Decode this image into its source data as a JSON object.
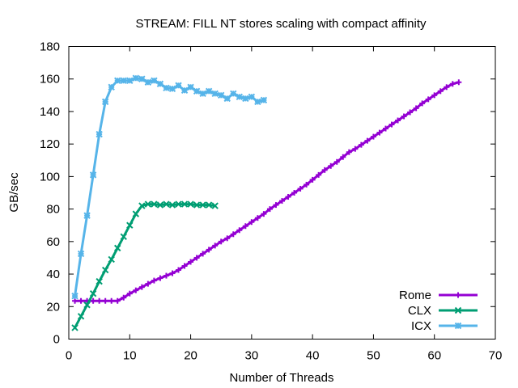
{
  "chart_data": {
    "type": "line",
    "title": "STREAM: FILL NT stores scaling with compact affinity",
    "xlabel": "Number of Threads",
    "ylabel": "GB/sec",
    "xlim": [
      0,
      70
    ],
    "ylim": [
      0,
      180
    ],
    "xticks": [
      0,
      10,
      20,
      30,
      40,
      50,
      60,
      70
    ],
    "yticks": [
      0,
      20,
      40,
      60,
      80,
      100,
      120,
      140,
      160,
      180
    ],
    "grid": false,
    "legend_position": "bottom-right",
    "series": [
      {
        "name": "Rome",
        "color": "#9400d3",
        "marker": "plus",
        "x": [
          1,
          2,
          3,
          4,
          5,
          6,
          7,
          8,
          9,
          10,
          11,
          12,
          13,
          14,
          15,
          16,
          17,
          18,
          19,
          20,
          21,
          22,
          23,
          24,
          25,
          26,
          27,
          28,
          29,
          30,
          31,
          32,
          33,
          34,
          35,
          36,
          37,
          38,
          39,
          40,
          41,
          42,
          43,
          44,
          45,
          46,
          47,
          48,
          49,
          50,
          51,
          52,
          53,
          54,
          55,
          56,
          57,
          58,
          59,
          60,
          61,
          62,
          63,
          64
        ],
        "y": [
          23.5,
          23.5,
          23.5,
          23.5,
          23.5,
          23.5,
          23.5,
          23.5,
          25.5,
          28,
          30,
          32,
          34,
          36,
          37.5,
          39,
          40.5,
          42.5,
          45,
          47.5,
          50,
          52.5,
          55,
          57.5,
          60,
          62,
          64.5,
          67,
          69.5,
          72,
          74.5,
          77,
          80,
          82.5,
          85,
          87.5,
          90,
          92.5,
          95,
          98,
          101,
          104,
          106.5,
          109,
          112,
          115,
          117,
          119.5,
          122,
          124.5,
          127,
          129.5,
          132,
          134.5,
          137,
          139.5,
          142,
          145,
          147.5,
          150,
          152.5,
          155,
          157,
          158
        ]
      },
      {
        "name": "CLX",
        "color": "#009e73",
        "marker": "cross",
        "x": [
          1,
          2,
          3,
          4,
          5,
          6,
          7,
          8,
          9,
          10,
          11,
          12,
          13,
          14,
          15,
          16,
          17,
          18,
          19,
          20,
          21,
          22,
          23,
          24
        ],
        "y": [
          7,
          14,
          21,
          28,
          35.5,
          42.5,
          49,
          56,
          63,
          70,
          77,
          82,
          83,
          83,
          82.5,
          83,
          82.5,
          83,
          83,
          83,
          82.5,
          82.5,
          82.5,
          82
        ]
      },
      {
        "name": "ICX",
        "color": "#56b4e9",
        "marker": "star",
        "x": [
          1,
          2,
          3,
          4,
          5,
          6,
          7,
          8,
          9,
          10,
          11,
          12,
          13,
          14,
          15,
          16,
          17,
          18,
          19,
          20,
          21,
          22,
          23,
          24,
          25,
          26,
          27,
          28,
          29,
          30,
          31,
          32
        ],
        "y": [
          26.5,
          52.5,
          76,
          101,
          126,
          146,
          155,
          159,
          159,
          159,
          160.5,
          160,
          158,
          159,
          157,
          154.5,
          154,
          156,
          153,
          155,
          152.5,
          151,
          152.5,
          151,
          150,
          148,
          151,
          149,
          148,
          149,
          146,
          147
        ]
      }
    ]
  }
}
